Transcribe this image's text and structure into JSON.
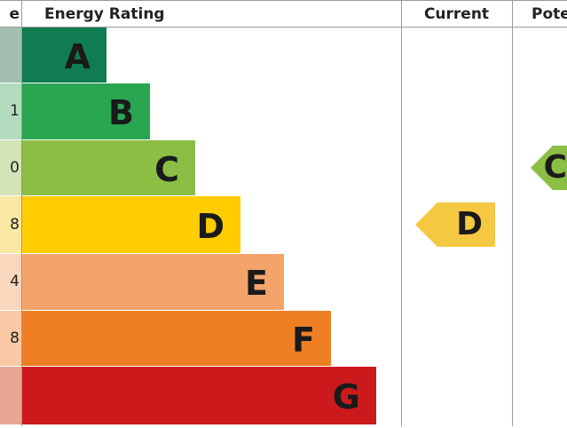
{
  "headers": {
    "score": "e",
    "rating": "Energy Rating",
    "current": "Current",
    "potential": "Pote"
  },
  "chart_data": {
    "type": "bar",
    "title": "",
    "categories": [
      "A",
      "B",
      "C",
      "D",
      "E",
      "F",
      "G"
    ],
    "score_fragments": [
      "",
      "1",
      "0",
      "8",
      "4",
      "8",
      ""
    ],
    "colors": [
      "#0f7c52",
      "#2aa550",
      "#8cbd45",
      "#ffcc00",
      "#f4a46b",
      "#ee7f25",
      "#cc1a1c"
    ],
    "score_colors": [
      "#a3bfb1",
      "#b3dbbe",
      "#d3e4b6",
      "#fbe7a4",
      "#f9d7bd",
      "#f8c9a4",
      "#e8a594"
    ],
    "current": {
      "rating": "D",
      "color": "#f5c842"
    },
    "potential": {
      "rating": "C",
      "color": "#8cbd45"
    }
  }
}
